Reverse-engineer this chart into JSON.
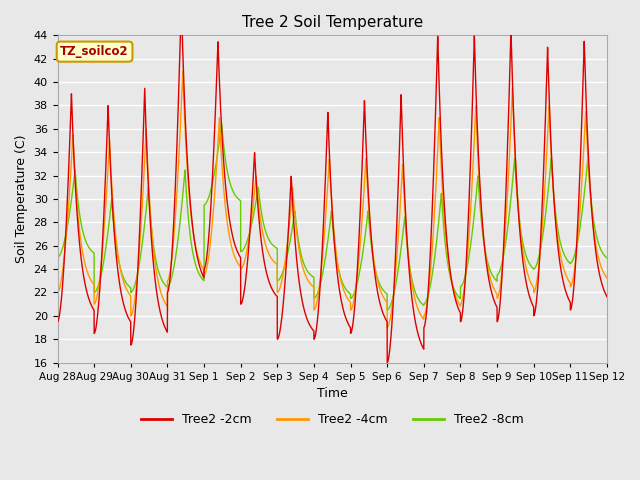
{
  "title": "Tree 2 Soil Temperature",
  "xlabel": "Time",
  "ylabel": "Soil Temperature (C)",
  "annotation": "TZ_soilco2",
  "ylim": [
    16,
    44
  ],
  "xlim": [
    0,
    15.0
  ],
  "yticks": [
    16,
    18,
    20,
    22,
    24,
    26,
    28,
    30,
    32,
    34,
    36,
    38,
    40,
    42,
    44
  ],
  "xtick_labels": [
    "Aug 28",
    "Aug 29",
    "Aug 30",
    "Aug 31",
    "Sep 1",
    "Sep 2",
    "Sep 3",
    "Sep 4",
    "Sep 5",
    "Sep 6",
    "Sep 7",
    "Sep 8",
    "Sep 9",
    "Sep 10",
    "Sep 11",
    "Sep 12"
  ],
  "xtick_positions": [
    0,
    1,
    2,
    3,
    4,
    5,
    6,
    7,
    8,
    9,
    10,
    11,
    12,
    13,
    14,
    15
  ],
  "colors": {
    "2cm": "#dd0000",
    "4cm": "#ff9900",
    "8cm": "#66cc00"
  },
  "background_color": "#e8e8e8",
  "grid_color": "#ffffff",
  "legend_labels": [
    "Tree2 -2cm",
    "Tree2 -4cm",
    "Tree2 -8cm"
  ],
  "peak_amps_2cm": [
    19.5,
    19.5,
    22.0,
    25.0,
    19.5,
    13.0,
    14.0,
    19.5,
    20.0,
    23.0,
    25.0,
    24.5,
    25.0,
    23.0,
    23.0
  ],
  "peak_amps_4cm": [
    13.5,
    14.0,
    16.0,
    18.0,
    13.5,
    8.0,
    9.0,
    13.0,
    13.0,
    14.0,
    17.0,
    17.0,
    18.0,
    16.0,
    15.0
  ],
  "peak_amps_8cm": [
    7.5,
    8.0,
    9.0,
    10.0,
    7.0,
    5.5,
    6.0,
    7.5,
    7.5,
    8.0,
    9.5,
    9.5,
    10.0,
    9.5,
    9.0
  ],
  "base_2cm": [
    20.0,
    19.5,
    19.5,
    20.0,
    20.0,
    21.5,
    19.5,
    19.0,
    18.5,
    18.5,
    19.5,
    20.0,
    20.0,
    20.0,
    20.5
  ],
  "base_4cm": [
    22.5,
    22.0,
    22.0,
    22.5,
    22.5,
    23.0,
    21.5,
    20.5,
    20.5,
    20.5,
    21.0,
    21.5,
    22.0,
    22.5,
    22.5
  ],
  "base_8cm": [
    24.5,
    23.5,
    23.5,
    24.0,
    24.0,
    24.5,
    23.5,
    22.5,
    22.5,
    22.5,
    23.0,
    23.5,
    24.0,
    24.5,
    24.5
  ],
  "phase_2cm": 0.38,
  "phase_4cm": 0.42,
  "phase_8cm": 0.48,
  "figsize": [
    6.4,
    4.8
  ],
  "dpi": 100
}
